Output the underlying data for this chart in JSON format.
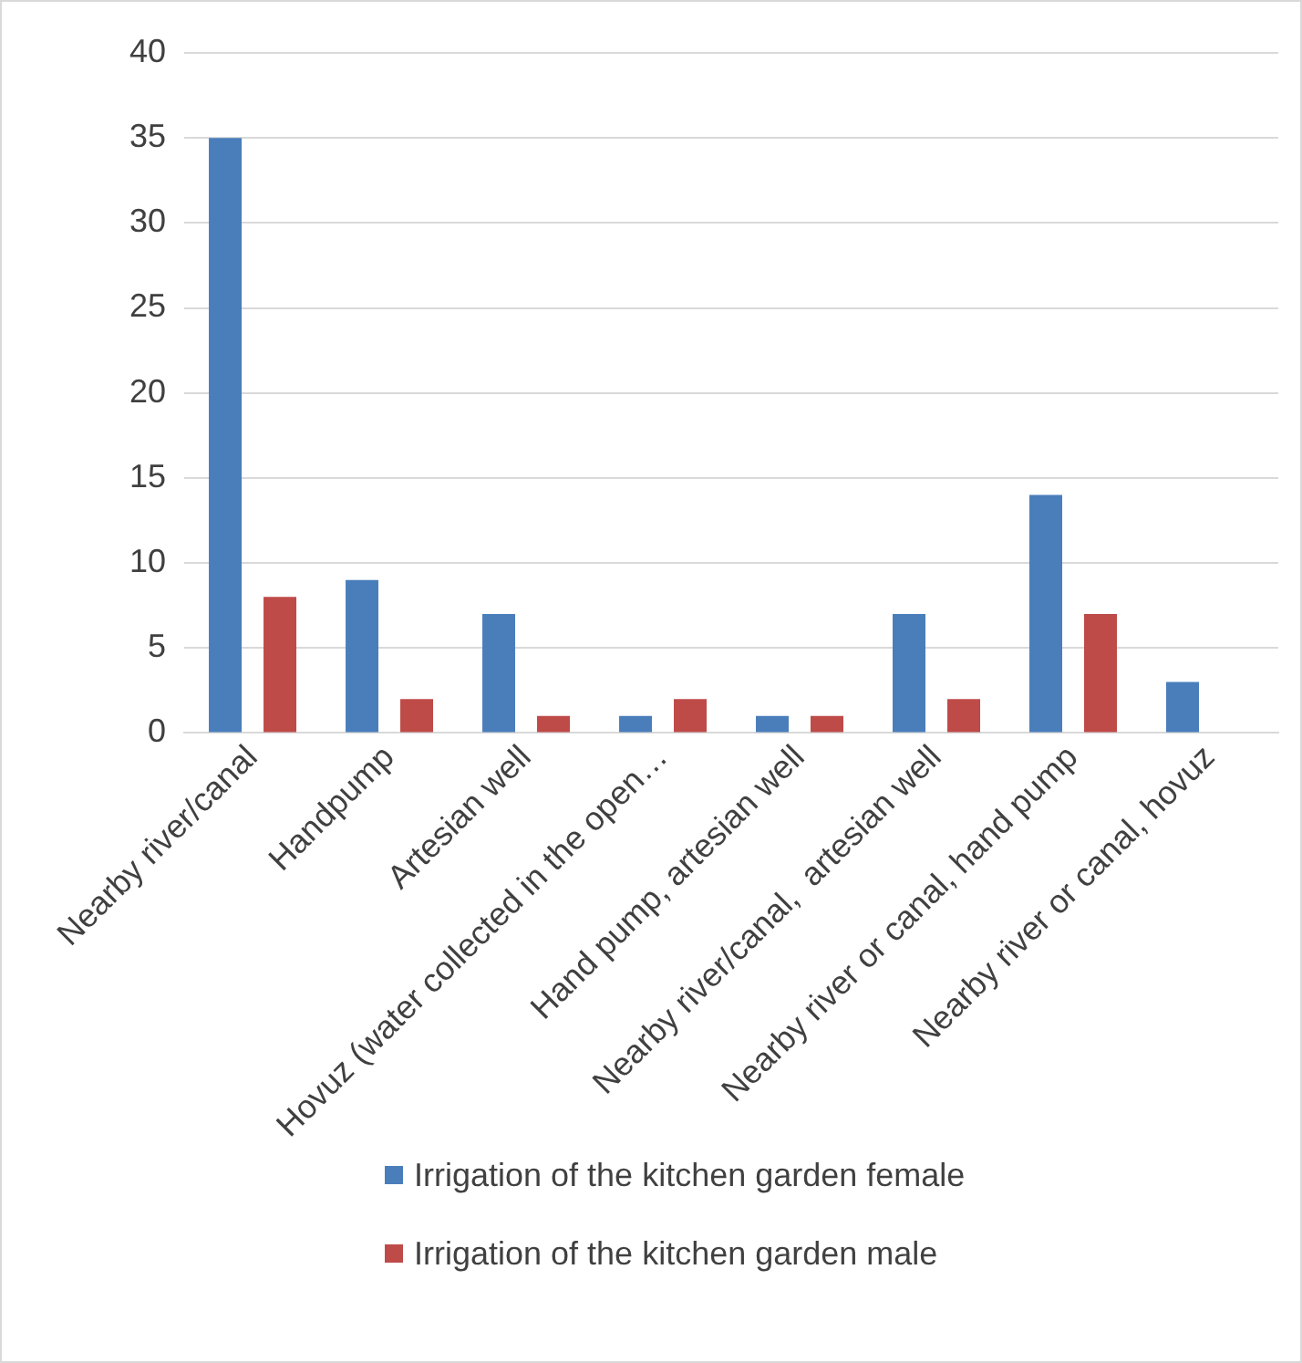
{
  "chart_data": {
    "type": "bar",
    "categories": [
      "Nearby river/canal",
      "Handpump",
      "Artesian well",
      "Hovuz (water collected in the open…",
      "Hand pump, artesian well",
      "Nearby river/canal,  artesian well",
      "Nearby river or canal, hand pump",
      "Nearby river or canal, hovuz"
    ],
    "series": [
      {
        "name": "Irrigation of the kitchen garden female",
        "color": "#4a7ebb",
        "values": [
          35,
          9,
          7,
          1,
          1,
          7,
          14,
          3
        ]
      },
      {
        "name": "Irrigation of the kitchen garden male",
        "color": "#be4b48",
        "values": [
          8,
          2,
          1,
          2,
          1,
          2,
          7,
          0
        ]
      }
    ],
    "ylim": [
      0,
      40
    ],
    "yticks": [
      0,
      5,
      10,
      15,
      20,
      25,
      30,
      35,
      40
    ],
    "grid": "y",
    "legend": "bottom"
  }
}
